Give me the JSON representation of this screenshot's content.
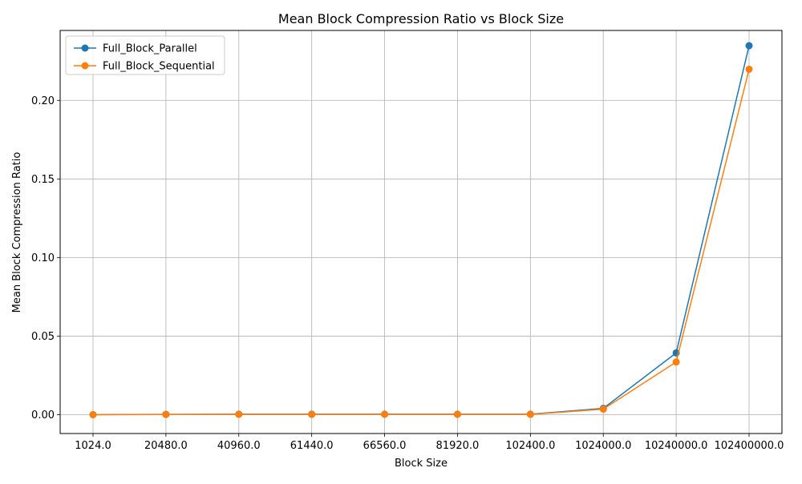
{
  "chart_data": {
    "type": "line",
    "title": "Mean Block Compression Ratio vs Block Size",
    "xlabel": "Block Size",
    "ylabel": "Mean Block Compression Ratio",
    "categories": [
      "1024.0",
      "20480.0",
      "40960.0",
      "61440.0",
      "66560.0",
      "81920.0",
      "102400.0",
      "1024000.0",
      "10240000.0",
      "102400000.0"
    ],
    "ylim": [
      -0.012,
      0.2445
    ],
    "yticks": [
      0.0,
      0.05,
      0.1,
      0.15,
      0.2
    ],
    "ytick_labels": [
      "0.00",
      "0.05",
      "0.10",
      "0.15",
      "0.20"
    ],
    "grid": true,
    "legend_position": "top-left",
    "series": [
      {
        "name": "Full_Block_Parallel",
        "color": "#1f77b4",
        "values": [
          0.0,
          0.0002,
          0.0003,
          0.0003,
          0.0003,
          0.0003,
          0.0003,
          0.004,
          0.0393,
          0.2348
        ]
      },
      {
        "name": "Full_Block_Sequential",
        "color": "#ff7f0e",
        "values": [
          0.0,
          0.0001,
          0.0002,
          0.0002,
          0.0002,
          0.0002,
          0.0002,
          0.0035,
          0.0335,
          0.2198
        ]
      }
    ]
  }
}
